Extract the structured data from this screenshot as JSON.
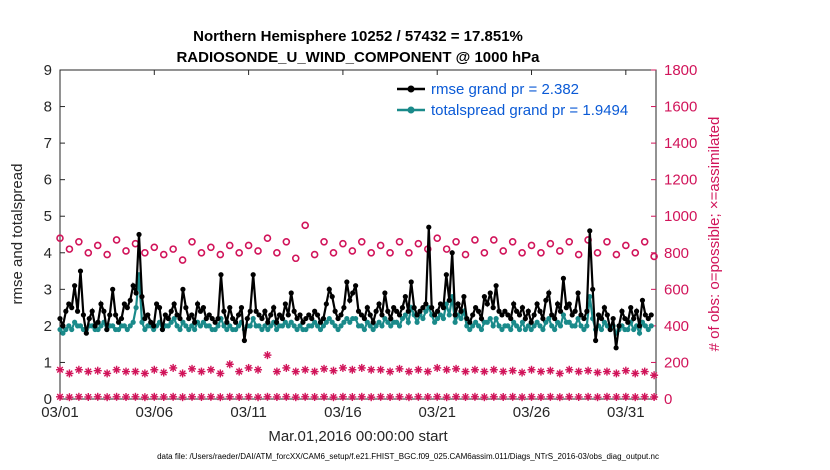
{
  "chart_data": {
    "type": "line",
    "title_line1": "Northern Hemisphere 10252 / 57432 = 17.851%",
    "title_line2": "RADIOSONDE_U_WIND_COMPONENT @ 1000 hPa",
    "ylabel_left": "rmse and totalspread",
    "ylabel_right": "# of obs: o=possible; ×=assimilated",
    "xlabel": "Mar.01,2016 00:00:00 start",
    "footnote": "data file: /Users/raeder/DAI/ATM_forcXX/CAM6_setup/f.e21.FHIST_BGC.f09_025.CAM6assim.011/Diags_NTrS_2016-03/obs_diag_output.nc",
    "x_range": [
      0,
      31.6
    ],
    "ylim_left": [
      0,
      9
    ],
    "ylim_right": [
      0,
      1800
    ],
    "x_ticks": [
      {
        "value": 0,
        "label": "03/01"
      },
      {
        "value": 5,
        "label": "03/06"
      },
      {
        "value": 10,
        "label": "03/11"
      },
      {
        "value": 15,
        "label": "03/16"
      },
      {
        "value": 20,
        "label": "03/21"
      },
      {
        "value": 25,
        "label": "03/26"
      },
      {
        "value": 30,
        "label": "03/31"
      }
    ],
    "y_ticks_left": [
      "0",
      "1",
      "2",
      "3",
      "4",
      "5",
      "6",
      "7",
      "8",
      "9"
    ],
    "y_ticks_right": [
      "0",
      "200",
      "400",
      "600",
      "800",
      "1000",
      "1200",
      "1400",
      "1600",
      "1800"
    ],
    "legend": {
      "position": "top-right",
      "entries": [
        "rmse grand pr = 2.382",
        "totalspread grand pr = 1.9494"
      ]
    },
    "series": [
      {
        "name": "rmse",
        "axis": "left",
        "color": "#000000",
        "values": [
          2.2,
          2.0,
          2.4,
          2.6,
          2.5,
          3.1,
          2.4,
          3.5,
          2.3,
          1.8,
          2.2,
          2.4,
          2.0,
          2.1,
          2.6,
          2.4,
          1.9,
          2.3,
          3.0,
          2.3,
          2.1,
          2.2,
          2.6,
          2.5,
          2.7,
          3.1,
          2.9,
          4.5,
          2.8,
          2.2,
          2.3,
          2.1,
          2.0,
          2.6,
          2.5,
          1.9,
          2.3,
          2.2,
          2.4,
          2.6,
          2.3,
          2.2,
          3.0,
          2.5,
          2.2,
          2.3,
          2.1,
          2.6,
          2.4,
          2.5,
          2.2,
          2.3,
          2.2,
          2.1,
          2.2,
          3.4,
          2.4,
          2.1,
          2.5,
          2.2,
          2.1,
          2.3,
          2.5,
          1.6,
          2.2,
          2.4,
          3.4,
          2.4,
          2.3,
          2.2,
          2.4,
          2.1,
          2.3,
          2.5,
          2.1,
          2.3,
          2.2,
          2.6,
          2.3,
          2.9,
          2.4,
          2.2,
          2.3,
          2.1,
          2.2,
          2.3,
          2.2,
          2.4,
          2.3,
          2.1,
          2.2,
          2.6,
          3.0,
          2.8,
          2.4,
          2.2,
          2.3,
          2.5,
          3.2,
          2.7,
          2.9,
          3.1,
          2.4,
          2.3,
          2.2,
          2.5,
          2.3,
          2.1,
          2.4,
          2.6,
          2.3,
          2.9,
          2.4,
          2.2,
          2.5,
          2.4,
          2.3,
          2.5,
          2.8,
          2.4,
          3.2,
          2.5,
          2.3,
          2.4,
          2.5,
          2.6,
          4.7,
          2.5,
          2.3,
          2.4,
          2.6,
          2.5,
          3.4,
          2.7,
          4.0,
          2.3,
          2.6,
          2.4,
          2.8,
          2.2,
          2.1,
          2.3,
          2.5,
          2.4,
          2.2,
          2.8,
          2.6,
          2.9,
          2.5,
          3.1,
          2.4,
          2.3,
          2.4,
          2.3,
          2.2,
          2.6,
          2.4,
          2.3,
          2.5,
          2.2,
          2.4,
          2.1,
          2.3,
          2.6,
          2.4,
          2.2,
          2.7,
          2.9,
          2.3,
          2.2,
          2.6,
          2.4,
          3.3,
          2.5,
          2.6,
          2.3,
          2.4,
          2.9,
          2.3,
          2.2,
          2.4,
          4.6,
          3.0,
          1.6,
          2.3,
          2.2,
          2.5,
          2.3,
          1.9,
          2.2,
          1.4,
          2.0,
          2.4,
          2.2,
          2.1,
          2.5,
          2.2,
          2.4,
          2.0,
          2.7,
          2.3,
          2.2,
          2.3
        ]
      },
      {
        "name": "totalspread",
        "axis": "left",
        "color": "#1a8a8a",
        "values": [
          1.9,
          1.8,
          1.9,
          2.0,
          1.9,
          2.1,
          2.0,
          2.0,
          1.9,
          1.9,
          2.0,
          2.0,
          1.9,
          1.9,
          2.0,
          2.1,
          1.9,
          2.0,
          2.0,
          1.9,
          1.9,
          2.0,
          2.0,
          1.9,
          2.0,
          2.1,
          2.5,
          3.4,
          2.1,
          1.9,
          2.0,
          2.0,
          1.9,
          2.0,
          2.1,
          1.9,
          2.0,
          2.0,
          2.1,
          2.2,
          2.0,
          1.9,
          2.1,
          2.0,
          1.9,
          2.0,
          1.9,
          2.1,
          2.0,
          2.1,
          2.0,
          2.0,
          1.9,
          1.9,
          2.0,
          2.2,
          2.0,
          1.9,
          2.0,
          1.9,
          1.9,
          2.0,
          2.1,
          1.9,
          2.0,
          2.0,
          2.2,
          2.0,
          2.0,
          1.9,
          2.0,
          1.9,
          2.0,
          2.1,
          1.9,
          2.0,
          2.0,
          2.1,
          2.0,
          2.1,
          2.0,
          1.9,
          2.0,
          1.9,
          1.9,
          2.0,
          2.0,
          2.1,
          2.0,
          1.9,
          2.0,
          2.1,
          2.2,
          2.1,
          2.0,
          1.9,
          2.0,
          2.1,
          2.2,
          2.1,
          2.2,
          2.2,
          2.0,
          2.0,
          1.9,
          2.1,
          2.0,
          1.9,
          2.0,
          2.1,
          2.0,
          2.2,
          2.1,
          2.0,
          2.1,
          2.1,
          2.0,
          2.2,
          2.3,
          2.1,
          2.5,
          2.3,
          2.1,
          2.3,
          2.2,
          2.4,
          2.5,
          2.3,
          2.1,
          2.2,
          2.3,
          2.2,
          2.6,
          2.3,
          2.8,
          2.1,
          2.3,
          2.2,
          2.4,
          2.0,
          1.9,
          2.0,
          2.1,
          2.0,
          1.9,
          2.1,
          2.1,
          2.2,
          2.0,
          2.2,
          2.0,
          1.9,
          2.0,
          2.0,
          1.9,
          2.1,
          2.0,
          1.9,
          2.1,
          1.9,
          2.0,
          1.9,
          2.0,
          2.1,
          2.0,
          1.9,
          2.1,
          2.2,
          2.0,
          1.9,
          2.1,
          2.0,
          2.3,
          2.1,
          2.1,
          2.0,
          2.0,
          2.2,
          2.0,
          1.9,
          2.0,
          2.8,
          2.2,
          1.9,
          2.0,
          1.9,
          2.1,
          2.0,
          1.9,
          2.0,
          1.8,
          1.9,
          2.0,
          1.9,
          1.9,
          2.1,
          1.9,
          2.0,
          1.8,
          2.1,
          2.0,
          1.9,
          2.0
        ]
      },
      {
        "name": "possible",
        "axis": "right",
        "marker": "circle",
        "color": "#d1145a",
        "x": [
          0,
          0.5,
          1,
          1.5,
          2,
          2.5,
          3,
          3.5,
          4,
          4.5,
          5,
          5.5,
          6,
          6.5,
          7,
          7.5,
          8,
          8.5,
          9,
          9.5,
          10,
          10.5,
          11,
          11.5,
          12,
          12.5,
          13,
          13.5,
          14,
          14.5,
          15,
          15.5,
          16,
          16.5,
          17,
          17.5,
          18,
          18.5,
          19,
          19.5,
          20,
          20.5,
          21,
          21.5,
          22,
          22.5,
          23,
          23.5,
          24,
          24.5,
          25,
          25.5,
          26,
          26.5,
          27,
          27.5,
          28,
          28.5,
          29,
          29.5,
          30,
          30.5,
          31,
          31.5
        ],
        "values": [
          880,
          820,
          860,
          800,
          840,
          790,
          870,
          810,
          850,
          800,
          830,
          790,
          820,
          760,
          860,
          800,
          830,
          790,
          840,
          800,
          840,
          810,
          880,
          800,
          860,
          770,
          950,
          790,
          860,
          800,
          850,
          810,
          860,
          800,
          840,
          800,
          860,
          800,
          850,
          820,
          880,
          820,
          860,
          790,
          870,
          800,
          870,
          810,
          860,
          800,
          840,
          800,
          850,
          810,
          860,
          790,
          870,
          800,
          860,
          790,
          840,
          800,
          860,
          780
        ]
      },
      {
        "name": "assimilated",
        "axis": "right",
        "marker": "star",
        "color": "#d1145a",
        "x": [
          0,
          0.5,
          1,
          1.5,
          2,
          2.5,
          3,
          3.5,
          4,
          4.5,
          5,
          5.5,
          6,
          6.5,
          7,
          7.5,
          8,
          8.5,
          9,
          9.5,
          10,
          10.5,
          11,
          11.5,
          12,
          12.5,
          13,
          13.5,
          14,
          14.5,
          15,
          15.5,
          16,
          16.5,
          17,
          17.5,
          18,
          18.5,
          19,
          19.5,
          20,
          20.5,
          21,
          21.5,
          22,
          22.5,
          23,
          23.5,
          24,
          24.5,
          25,
          25.5,
          26,
          26.5,
          27,
          27.5,
          28,
          28.5,
          29,
          29.5,
          30,
          30.5,
          31,
          31.5
        ],
        "values": [
          160,
          140,
          160,
          150,
          155,
          140,
          160,
          150,
          150,
          140,
          160,
          145,
          170,
          140,
          165,
          150,
          160,
          140,
          190,
          150,
          170,
          160,
          240,
          150,
          170,
          150,
          160,
          150,
          165,
          155,
          170,
          160,
          170,
          160,
          160,
          150,
          165,
          150,
          160,
          150,
          170,
          160,
          165,
          150,
          160,
          150,
          160,
          150,
          155,
          145,
          160,
          150,
          155,
          140,
          160,
          150,
          155,
          145,
          150,
          140,
          155,
          140,
          150,
          130
        ]
      },
      {
        "name": "assimilated-base",
        "axis": "right",
        "marker": "star",
        "color": "#d1145a",
        "x": [
          0,
          0.5,
          1,
          1.5,
          2,
          2.5,
          3,
          3.5,
          4,
          4.5,
          5,
          5.5,
          6,
          6.5,
          7,
          7.5,
          8,
          8.5,
          9,
          9.5,
          10,
          10.5,
          11,
          11.5,
          12,
          12.5,
          13,
          13.5,
          14,
          14.5,
          15,
          15.5,
          16,
          16.5,
          17,
          17.5,
          18,
          18.5,
          19,
          19.5,
          20,
          20.5,
          21,
          21.5,
          22,
          22.5,
          23,
          23.5,
          24,
          24.5,
          25,
          25.5,
          26,
          26.5,
          27,
          27.5,
          28,
          28.5,
          29,
          29.5,
          30,
          30.5,
          31,
          31.5
        ],
        "values": [
          12,
          10,
          12,
          11,
          12,
          10,
          12,
          11,
          12,
          10,
          12,
          11,
          12,
          10,
          12,
          11,
          12,
          10,
          12,
          11,
          12,
          10,
          12,
          11,
          12,
          10,
          12,
          11,
          12,
          10,
          12,
          11,
          12,
          10,
          12,
          11,
          12,
          10,
          12,
          11,
          12,
          10,
          12,
          11,
          12,
          10,
          12,
          11,
          12,
          10,
          12,
          11,
          12,
          10,
          12,
          11,
          12,
          10,
          12,
          11,
          12,
          10,
          12,
          11
        ]
      }
    ]
  }
}
